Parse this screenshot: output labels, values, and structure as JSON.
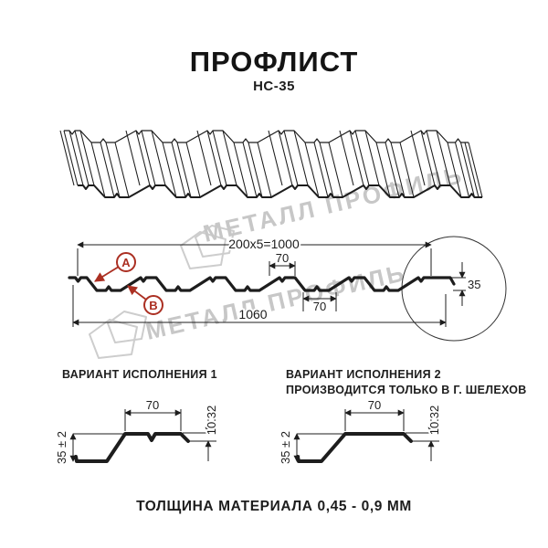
{
  "header": {
    "title": "ПРОФЛИСТ",
    "subtitle": "НС-35"
  },
  "watermark": {
    "text": "МЕТАЛЛ ПРОФИЛЬ"
  },
  "section": {
    "dim_total_top": "200x5=1000",
    "dim_rib_top": "70",
    "dim_rib_bottom": "70",
    "dim_overall": "1060",
    "dim_height": "35",
    "label_a": "А",
    "label_b": "В"
  },
  "variant1": {
    "heading": "ВАРИАНТ ИСПОЛНЕНИЯ 1",
    "dim_top": "70",
    "dim_step": "10.32",
    "dim_height": "35 ± 2"
  },
  "variant2": {
    "heading_line1": "ВАРИАНТ ИСПОЛНЕНИЯ 2",
    "heading_line2": "ПРОИЗВОДИТСЯ ТОЛЬКО В Г. ШЕЛЕХОВ",
    "dim_top": "70",
    "dim_step": "10.32",
    "dim_height": "35 ± 2"
  },
  "footer": {
    "note": "ТОЛЩИНА МАТЕРИАЛА 0,45 - 0,9 ММ"
  },
  "colors": {
    "line": "#1d1d1d",
    "accent_red": "#ab2f22",
    "watermark": "#c7c7c7"
  }
}
